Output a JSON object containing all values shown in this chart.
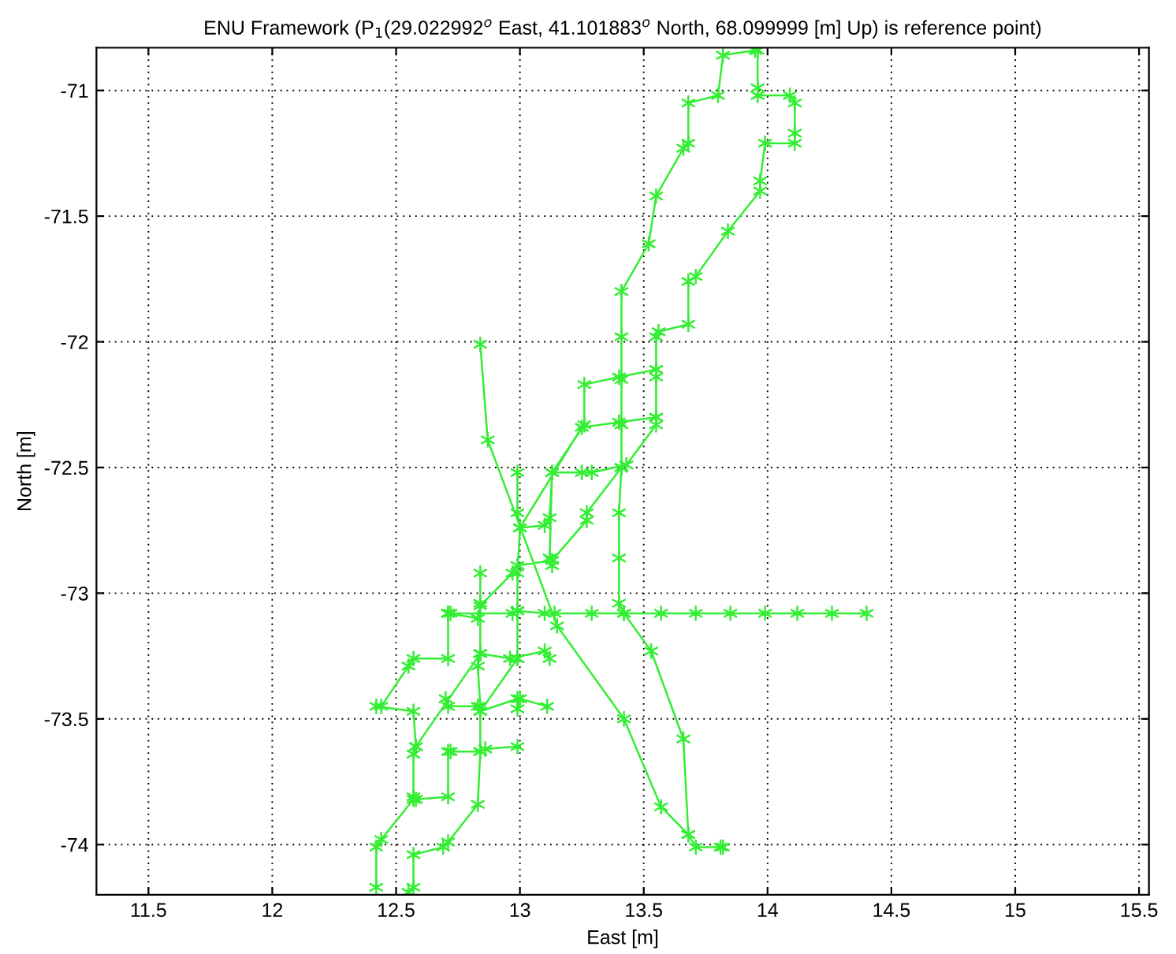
{
  "chart_data": {
    "type": "line",
    "title": "ENU Framework (P$_{1}$(29.022992$^{o}$ East, 41.101883$^{o}$ North, 68.099999 [m] Up) is reference point)",
    "xlabel": "East [m]",
    "ylabel": "North [m]",
    "xlim": [
      11.29,
      15.54
    ],
    "ylim": [
      -74.2,
      -70.83
    ],
    "xticks": [
      11.5,
      12,
      12.5,
      13,
      13.5,
      14,
      14.5,
      15,
      15.5
    ],
    "yticks": [
      -74,
      -73.5,
      -73,
      -72.5,
      -72,
      -71.5,
      -71
    ],
    "grid": true,
    "marker": "cross",
    "line_style": "solid",
    "series": [
      {
        "color": "#33ee33",
        "x": [
          12.84,
          12.87,
          13.15,
          13.42,
          13.57,
          13.68,
          13.71,
          13.81,
          13.82,
          null,
          13.68,
          13.66,
          13.53,
          13.42,
          13.4,
          13.4,
          13.4,
          13.41,
          13.41,
          13.41,
          13.41,
          13.41,
          13.52,
          13.55,
          13.66,
          13.68,
          13.68,
          13.8,
          13.82,
          13.95,
          13.96,
          13.96,
          13.96,
          14.09,
          14.11,
          14.11,
          14.11,
          13.99,
          13.97,
          13.97,
          13.84,
          13.71,
          13.68,
          13.68,
          13.56,
          13.55,
          13.55,
          13.55,
          13.55,
          13.55,
          13.43,
          13.29,
          13.25,
          13.13,
          13.12,
          13.1,
          13.0,
          12.99,
          12.99,
          null,
          13.55,
          13.4,
          13.26,
          13.26,
          13.13,
          13.12,
          13.13,
          null,
          13.55,
          13.4,
          13.25,
          13.0,
          12.99,
          12.99,
          12.99,
          null,
          13.41,
          13.27,
          13.27,
          13.13,
          12.99,
          12.97,
          12.84,
          12.83,
          12.71,
          null,
          12.71,
          12.72,
          12.97,
          12.99,
          13.1,
          13.14,
          13.29,
          13.42,
          13.57,
          13.71,
          13.85,
          13.99,
          14.12,
          14.26,
          14.4,
          null,
          12.84,
          12.84,
          12.84,
          12.83,
          12.84,
          12.84,
          12.83,
          12.71,
          12.69,
          12.57,
          12.57,
          12.55,
          null,
          12.84,
          12.96,
          13.1,
          13.12,
          null,
          12.71,
          12.71,
          12.57,
          12.55,
          12.44,
          12.42,
          12.57,
          12.58,
          12.57,
          12.57,
          12.58,
          12.71,
          12.71,
          12.72,
          12.84,
          12.86,
          12.99,
          null,
          12.42,
          12.42,
          12.44,
          12.57,
          null,
          12.7,
          12.71,
          12.83,
          12.84,
          12.99,
          12.99,
          13.0,
          13.11,
          null,
          12.58,
          12.84,
          null,
          12.84,
          12.99
        ],
        "values": [
          -72.01,
          -72.39,
          -73.13,
          -73.5,
          -73.85,
          -73.96,
          -74.01,
          -74.01,
          -74.01,
          null,
          -73.96,
          -73.58,
          -73.23,
          -73.08,
          -73.04,
          -72.86,
          -72.68,
          -72.5,
          -72.33,
          -72.15,
          -71.98,
          -71.8,
          -71.61,
          -71.42,
          -71.23,
          -71.21,
          -71.05,
          -71.02,
          -70.86,
          -70.84,
          -70.84,
          -70.99,
          -71.02,
          -71.02,
          -71.05,
          -71.17,
          -71.21,
          -71.21,
          -71.36,
          -71.4,
          -71.56,
          -71.74,
          -71.76,
          -71.93,
          -71.96,
          -71.98,
          -72.11,
          -72.14,
          -72.3,
          -72.33,
          -72.49,
          -72.52,
          -72.52,
          -72.52,
          -72.7,
          -72.73,
          -72.74,
          -72.68,
          -72.52,
          null,
          -72.11,
          -72.14,
          -72.17,
          -72.33,
          -72.52,
          -72.86,
          -72.89,
          null,
          -72.3,
          -72.32,
          -72.34,
          -72.74,
          -72.92,
          -73.07,
          -73.26,
          null,
          -72.5,
          -72.68,
          -72.71,
          -72.87,
          -72.89,
          -72.92,
          -73.05,
          -73.1,
          -73.08,
          null,
          -73.08,
          -73.08,
          -73.08,
          -73.07,
          -73.08,
          -73.08,
          -73.08,
          -73.08,
          -73.08,
          -73.08,
          -73.08,
          -73.08,
          -73.08,
          -73.08,
          -73.08,
          null,
          -72.92,
          -73.04,
          -73.24,
          -73.29,
          -73.45,
          -73.63,
          -73.84,
          -73.99,
          -74.01,
          -74.04,
          -74.17,
          -74.19,
          null,
          -73.24,
          -73.26,
          -73.23,
          -73.26,
          null,
          -73.08,
          -73.26,
          -73.26,
          -73.29,
          -73.45,
          -73.45,
          -73.47,
          -73.61,
          -73.64,
          -73.81,
          -73.82,
          -73.81,
          -73.63,
          -73.63,
          -73.63,
          -73.62,
          -73.61,
          null,
          -74.17,
          -74.01,
          -73.98,
          -73.82,
          null,
          -73.42,
          -73.45,
          -73.45,
          -73.47,
          -73.42,
          -73.46,
          -73.42,
          -73.45,
          null,
          -73.61,
          -73.24,
          null,
          -73.47,
          -73.26
        ]
      }
    ]
  }
}
